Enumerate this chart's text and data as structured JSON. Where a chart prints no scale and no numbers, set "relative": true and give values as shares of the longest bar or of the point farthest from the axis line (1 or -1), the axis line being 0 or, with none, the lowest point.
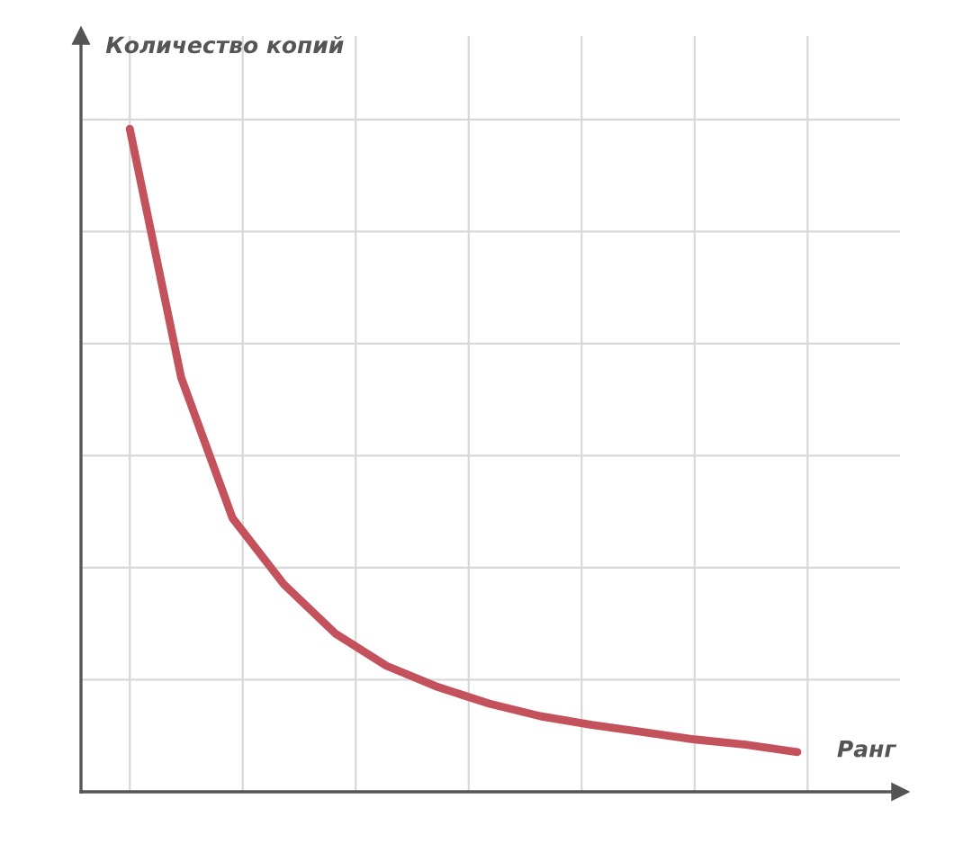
{
  "chart_data": {
    "type": "line",
    "relative": true,
    "xlabel": "Ранг",
    "ylabel": "Количество копий",
    "categories": [
      null,
      null,
      null,
      null,
      null,
      null,
      null,
      null,
      null,
      null,
      null,
      null,
      null,
      null
    ],
    "series": [
      {
        "color": "#c4525c",
        "values": [
          1.0,
          0.625,
          0.413,
          0.313,
          0.239,
          0.19,
          0.158,
          0.133,
          0.114,
          0.101,
          0.09,
          0.079,
          0.071,
          0.06
        ]
      }
    ],
    "grid": true,
    "tick_labels": false,
    "marker": "none",
    "line_style": "solid",
    "legend": false
  }
}
